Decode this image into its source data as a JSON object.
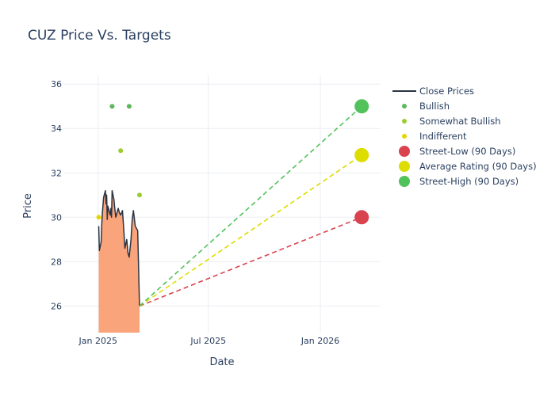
{
  "chart_data": {
    "type": "line",
    "title": "CUZ Price Vs. Targets",
    "xlabel": "Date",
    "ylabel": "Price",
    "xlim": [
      "2024-11-05",
      "2026-04-10"
    ],
    "ylim": [
      24.8,
      36.4
    ],
    "x_ticks": [
      {
        "date": "2025-01-01",
        "label": "Jan 2025"
      },
      {
        "date": "2025-07-01",
        "label": "Jul 2025"
      },
      {
        "date": "2026-01-01",
        "label": "Jan 2026"
      }
    ],
    "y_ticks": [
      26,
      28,
      30,
      32,
      34,
      36
    ],
    "grid": true,
    "legend_position": "right",
    "colors": {
      "close_line": "#2b3443",
      "close_fill": "#f9a47a",
      "bullish": "#5cb85c",
      "somewhat_bullish": "#9acd32",
      "indifferent": "#e6d600",
      "street_low": "#d9434e",
      "average": "#dddd00",
      "street_high": "#52c25a"
    },
    "close_prices": [
      {
        "date": "2025-01-02",
        "value": 29.6
      },
      {
        "date": "2025-01-03",
        "value": 28.5
      },
      {
        "date": "2025-01-06",
        "value": 28.9
      },
      {
        "date": "2025-01-07",
        "value": 29.7
      },
      {
        "date": "2025-01-08",
        "value": 30.2
      },
      {
        "date": "2025-01-10",
        "value": 30.9
      },
      {
        "date": "2025-01-13",
        "value": 31.2
      },
      {
        "date": "2025-01-14",
        "value": 30.6
      },
      {
        "date": "2025-01-15",
        "value": 31.0
      },
      {
        "date": "2025-01-16",
        "value": 29.9
      },
      {
        "date": "2025-01-17",
        "value": 30.5
      },
      {
        "date": "2025-01-21",
        "value": 30.1
      },
      {
        "date": "2025-01-22",
        "value": 30.4
      },
      {
        "date": "2025-01-23",
        "value": 30.0
      },
      {
        "date": "2025-01-24",
        "value": 31.2
      },
      {
        "date": "2025-01-27",
        "value": 30.8
      },
      {
        "date": "2025-01-28",
        "value": 30.5
      },
      {
        "date": "2025-01-30",
        "value": 30.0
      },
      {
        "date": "2025-02-03",
        "value": 30.4
      },
      {
        "date": "2025-02-05",
        "value": 30.2
      },
      {
        "date": "2025-02-07",
        "value": 30.1
      },
      {
        "date": "2025-02-10",
        "value": 30.3
      },
      {
        "date": "2025-02-12",
        "value": 29.5
      },
      {
        "date": "2025-02-14",
        "value": 28.6
      },
      {
        "date": "2025-02-17",
        "value": 29.0
      },
      {
        "date": "2025-02-19",
        "value": 28.4
      },
      {
        "date": "2025-02-21",
        "value": 28.2
      },
      {
        "date": "2025-02-24",
        "value": 29.0
      },
      {
        "date": "2025-02-26",
        "value": 29.9
      },
      {
        "date": "2025-02-28",
        "value": 30.3
      },
      {
        "date": "2025-03-03",
        "value": 29.6
      },
      {
        "date": "2025-03-05",
        "value": 29.5
      },
      {
        "date": "2025-03-07",
        "value": 29.4
      },
      {
        "date": "2025-03-10",
        "value": 26.0
      }
    ],
    "analyst_ratings": [
      {
        "category": "Indifferent",
        "date": "2025-01-02",
        "value": 30
      },
      {
        "category": "Bullish",
        "date": "2025-01-24",
        "value": 35
      },
      {
        "category": "Somewhat Bullish",
        "date": "2025-02-07",
        "value": 33
      },
      {
        "category": "Bullish",
        "date": "2025-02-21",
        "value": 35
      },
      {
        "category": "Somewhat Bullish",
        "date": "2025-03-10",
        "value": 31
      }
    ],
    "targets": {
      "start": {
        "date": "2025-03-10",
        "value": 26.0
      },
      "end_date": "2026-03-10",
      "street_low": 30,
      "average": 32.8,
      "street_high": 35
    },
    "legend": [
      {
        "label": "Close Prices",
        "kind": "line",
        "color": "#2b3443"
      },
      {
        "label": "Bullish",
        "kind": "dot",
        "color": "#5cb85c"
      },
      {
        "label": "Somewhat Bullish",
        "kind": "dot",
        "color": "#9acd32"
      },
      {
        "label": "Indifferent",
        "kind": "dot",
        "color": "#e6d600"
      },
      {
        "label": "Street-Low (90 Days)",
        "kind": "big",
        "color": "#d9434e"
      },
      {
        "label": "Average Rating (90 Days)",
        "kind": "big",
        "color": "#dddd00"
      },
      {
        "label": "Street-High (90 Days)",
        "kind": "big",
        "color": "#52c25a"
      }
    ]
  }
}
